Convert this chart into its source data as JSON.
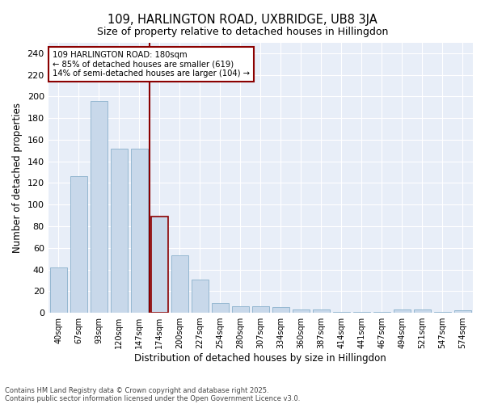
{
  "title1": "109, HARLINGTON ROAD, UXBRIDGE, UB8 3JA",
  "title2": "Size of property relative to detached houses in Hillingdon",
  "xlabel": "Distribution of detached houses by size in Hillingdon",
  "ylabel": "Number of detached properties",
  "categories": [
    "40sqm",
    "67sqm",
    "93sqm",
    "120sqm",
    "147sqm",
    "174sqm",
    "200sqm",
    "227sqm",
    "254sqm",
    "280sqm",
    "307sqm",
    "334sqm",
    "360sqm",
    "387sqm",
    "414sqm",
    "441sqm",
    "467sqm",
    "494sqm",
    "521sqm",
    "547sqm",
    "574sqm"
  ],
  "values": [
    42,
    126,
    196,
    152,
    152,
    89,
    53,
    31,
    9,
    6,
    6,
    5,
    3,
    3,
    1,
    1,
    1,
    3,
    3,
    1,
    2
  ],
  "bar_color": "#c8d8ea",
  "bar_edge_color": "#8ab0cc",
  "highlight_index": 5,
  "vline_color": "#8b0000",
  "ylim": [
    0,
    250
  ],
  "yticks": [
    0,
    20,
    40,
    60,
    80,
    100,
    120,
    140,
    160,
    180,
    200,
    220,
    240
  ],
  "annotation_title": "109 HARLINGTON ROAD: 180sqm",
  "annotation_line1": "← 85% of detached houses are smaller (619)",
  "annotation_line2": "14% of semi-detached houses are larger (104) →",
  "annotation_box_color": "#ffffff",
  "annotation_box_edge": "#8b0000",
  "background_color": "#e8eef8",
  "grid_color": "#ffffff",
  "footer1": "Contains HM Land Registry data © Crown copyright and database right 2025.",
  "footer2": "Contains public sector information licensed under the Open Government Licence v3.0."
}
